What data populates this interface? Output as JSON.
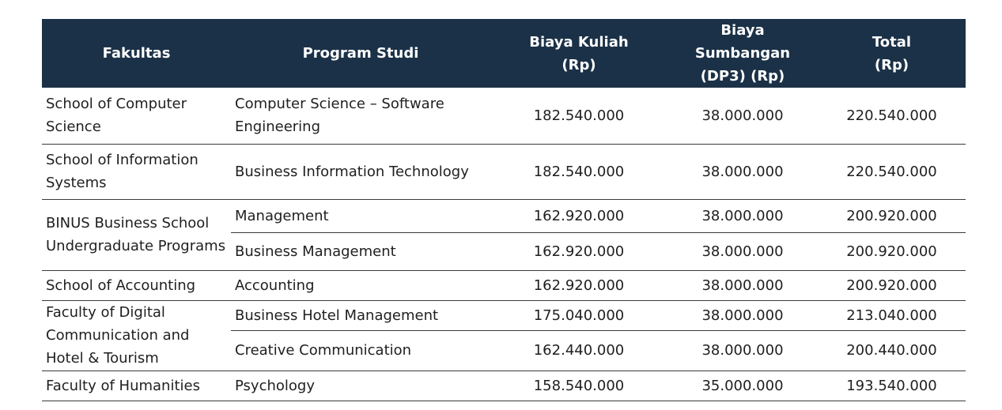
{
  "header": {
    "fakultas": "Fakultas",
    "program_studi": "Program Studi",
    "biaya_kuliah": [
      "Biaya Kuliah",
      "(Rp)"
    ],
    "biaya_sumbangan": [
      "Biaya Sumbangan",
      "(DP3) (Rp)"
    ],
    "total": [
      "Total",
      "(Rp)"
    ]
  },
  "faculties": [
    {
      "name": "School of Computer Science"
    },
    {
      "name": "School of Information Systems"
    },
    {
      "name": "BINUS Business School Undergraduate Programs"
    },
    {
      "name": "School of Accounting"
    },
    {
      "name": "Faculty of Digital Communication and Hotel & Tourism"
    },
    {
      "name": "Faculty of Humanities"
    }
  ],
  "programs": [
    {
      "program": "Computer Science – Software Engineering",
      "biaya_kuliah": "182.540.000",
      "dp3": "38.000.000",
      "total": "220.540.000"
    },
    {
      "program": "Business Information Technology",
      "biaya_kuliah": "182.540.000",
      "dp3": "38.000.000",
      "total": "220.540.000"
    },
    {
      "program": "Management",
      "biaya_kuliah": "162.920.000",
      "dp3": "38.000.000",
      "total": "200.920.000"
    },
    {
      "program": "Business Management",
      "biaya_kuliah": "162.920.000",
      "dp3": "38.000.000",
      "total": "200.920.000"
    },
    {
      "program": "Accounting",
      "biaya_kuliah": "162.920.000",
      "dp3": "38.000.000",
      "total": "200.920.000"
    },
    {
      "program": "Business Hotel Management",
      "biaya_kuliah": "175.040.000",
      "dp3": "38.000.000",
      "total": "213.040.000"
    },
    {
      "program": "Creative Communication",
      "biaya_kuliah": "162.440.000",
      "dp3": "38.000.000",
      "total": "200.440.000"
    },
    {
      "program": "Psychology",
      "biaya_kuliah": "158.540.000",
      "dp3": "35.000.000",
      "total": "193.540.000"
    }
  ],
  "colors": {
    "header_bg": "#1b3147",
    "header_text": "#ffffff",
    "body_text": "#1f1f1f",
    "row_divider": "#3a3a3a"
  }
}
